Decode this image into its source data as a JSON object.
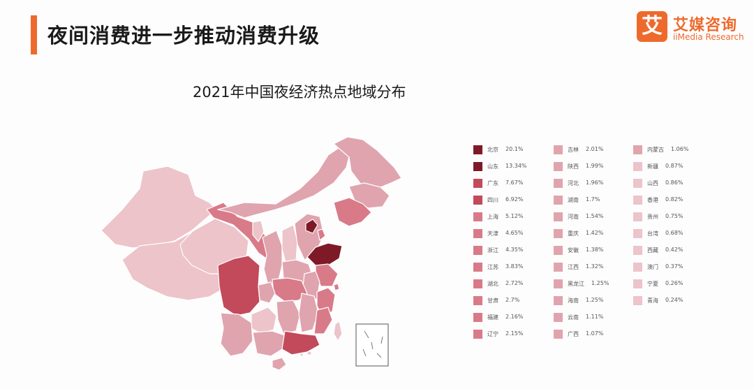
{
  "header": {
    "title": "夜间消费进一步推动消费升级",
    "logo_mark": "艾",
    "logo_name": "艾媒咨询",
    "logo_en": "iiMedia Research"
  },
  "chart_data": {
    "type": "map",
    "title": "2021年中国夜经济热点地域分布",
    "unit": "%",
    "colors": {
      "top": "#7e1a27",
      "high": "#c24a5a",
      "mid": "#d97a88",
      "low": "#e0a4ae",
      "lowest": "#ecc4ca"
    },
    "regions": [
      {
        "name": "北京",
        "value": 20.1,
        "label": "20.1%"
      },
      {
        "name": "山东",
        "value": 13.34,
        "label": "13.34%"
      },
      {
        "name": "广东",
        "value": 7.67,
        "label": "7.67%"
      },
      {
        "name": "四川",
        "value": 6.92,
        "label": "6.92%"
      },
      {
        "name": "上海",
        "value": 5.12,
        "label": "5.12%"
      },
      {
        "name": "天津",
        "value": 4.65,
        "label": "4.65%"
      },
      {
        "name": "浙江",
        "value": 4.35,
        "label": "4.35%"
      },
      {
        "name": "江苏",
        "value": 3.83,
        "label": "3.83%"
      },
      {
        "name": "湖北",
        "value": 2.72,
        "label": "2.72%"
      },
      {
        "name": "甘肃",
        "value": 2.7,
        "label": "2.7%"
      },
      {
        "name": "福建",
        "value": 2.16,
        "label": "2.16%"
      },
      {
        "name": "辽宁",
        "value": 2.15,
        "label": "2.15%"
      },
      {
        "name": "吉林",
        "value": 2.01,
        "label": "2.01%"
      },
      {
        "name": "陕西",
        "value": 1.99,
        "label": "1.99%"
      },
      {
        "name": "河北",
        "value": 1.96,
        "label": "1.96%"
      },
      {
        "name": "湖南",
        "value": 1.7,
        "label": "1.7%"
      },
      {
        "name": "河南",
        "value": 1.54,
        "label": "1.54%"
      },
      {
        "name": "重庆",
        "value": 1.42,
        "label": "1.42%"
      },
      {
        "name": "安徽",
        "value": 1.38,
        "label": "1.38%"
      },
      {
        "name": "江西",
        "value": 1.32,
        "label": "1.32%"
      },
      {
        "name": "黑龙江",
        "value": 1.25,
        "label": "1.25%"
      },
      {
        "name": "海南",
        "value": 1.25,
        "label": "1.25%"
      },
      {
        "name": "云南",
        "value": 1.11,
        "label": "1.11%"
      },
      {
        "name": "广西",
        "value": 1.07,
        "label": "1.07%"
      },
      {
        "name": "内蒙古",
        "value": 1.06,
        "label": "1.06%"
      },
      {
        "name": "新疆",
        "value": 0.87,
        "label": "0.87%"
      },
      {
        "name": "山西",
        "value": 0.86,
        "label": "0.86%"
      },
      {
        "name": "香港",
        "value": 0.82,
        "label": "0.82%"
      },
      {
        "name": "贵州",
        "value": 0.75,
        "label": "0.75%"
      },
      {
        "name": "台湾",
        "value": 0.68,
        "label": "0.68%"
      },
      {
        "name": "西藏",
        "value": 0.42,
        "label": "0.42%"
      },
      {
        "name": "澳门",
        "value": 0.37,
        "label": "0.37%"
      },
      {
        "name": "宁夏",
        "value": 0.26,
        "label": "0.26%"
      },
      {
        "name": "青海",
        "value": 0.24,
        "label": "0.24%"
      }
    ]
  }
}
